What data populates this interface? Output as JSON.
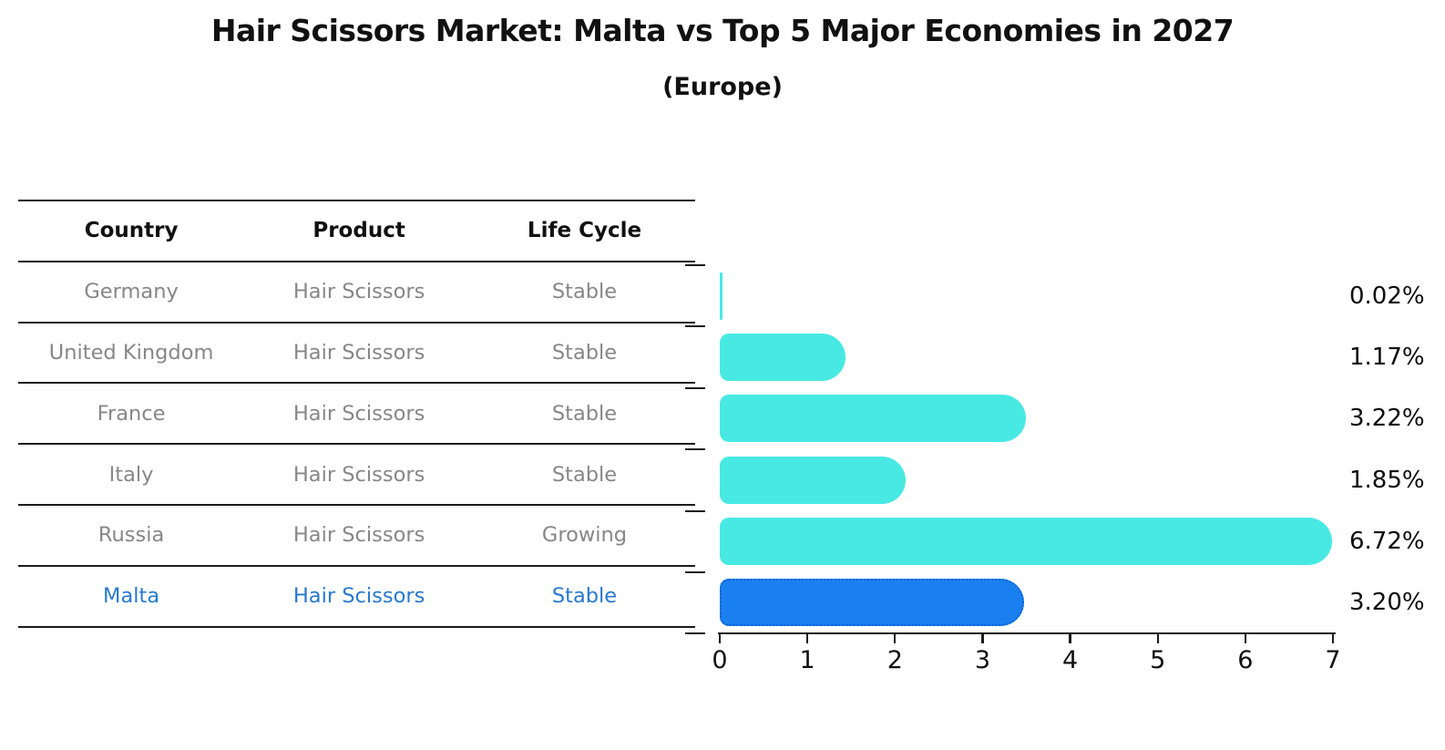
{
  "title": "Hair Scissors Market: Malta vs Top 5 Major Economies in 2027",
  "subtitle": "(Europe)",
  "table": {
    "headers": [
      "Country",
      "Product",
      "Life Cycle"
    ],
    "rows": [
      {
        "country": "Germany",
        "product": "Hair Scissors",
        "life_cycle": "Stable",
        "highlighted": false
      },
      {
        "country": "United Kingdom",
        "product": "Hair Scissors",
        "life_cycle": "Stable",
        "highlighted": false
      },
      {
        "country": "France",
        "product": "Hair Scissors",
        "life_cycle": "Stable",
        "highlighted": false
      },
      {
        "country": "Italy",
        "product": "Hair Scissors",
        "life_cycle": "Stable",
        "highlighted": false
      },
      {
        "country": "Russia",
        "product": "Hair Scissors",
        "life_cycle": "Growing",
        "highlighted": false
      },
      {
        "country": "Malta",
        "product": "Hair Scissors",
        "life_cycle": "Stable",
        "highlighted": true
      }
    ]
  },
  "chart_data": {
    "type": "bar",
    "orientation": "horizontal",
    "title": "Hair Scissors Market: Malta vs Top 5 Major Economies in 2027",
    "subtitle": "(Europe)",
    "categories": [
      "Germany",
      "United Kingdom",
      "France",
      "Italy",
      "Russia",
      "Malta"
    ],
    "values": [
      0.02,
      1.17,
      3.22,
      1.85,
      6.72,
      3.2
    ],
    "value_labels": [
      "0.02%",
      "1.17%",
      "3.22%",
      "1.85%",
      "6.72%",
      "3.20%"
    ],
    "xlim": [
      0,
      7
    ],
    "x_ticks": [
      0,
      1,
      2,
      3,
      4,
      5,
      6,
      7
    ],
    "grid": false,
    "legend": false,
    "highlight_index": 5,
    "bar_color": "#48E9E3",
    "highlight_bar_color": "#1A80F0",
    "highlight_border_color": "#0B62D0"
  },
  "colors": {
    "bar": "#48E9E3",
    "highlight_bar": "#1A80F0",
    "highlight_border": "#0B62D0",
    "highlight_text": "#2878CE",
    "table_text": "#878787",
    "header_text": "#111111",
    "axis": "#1c1c1c",
    "value_text": "#0d0d0d"
  }
}
